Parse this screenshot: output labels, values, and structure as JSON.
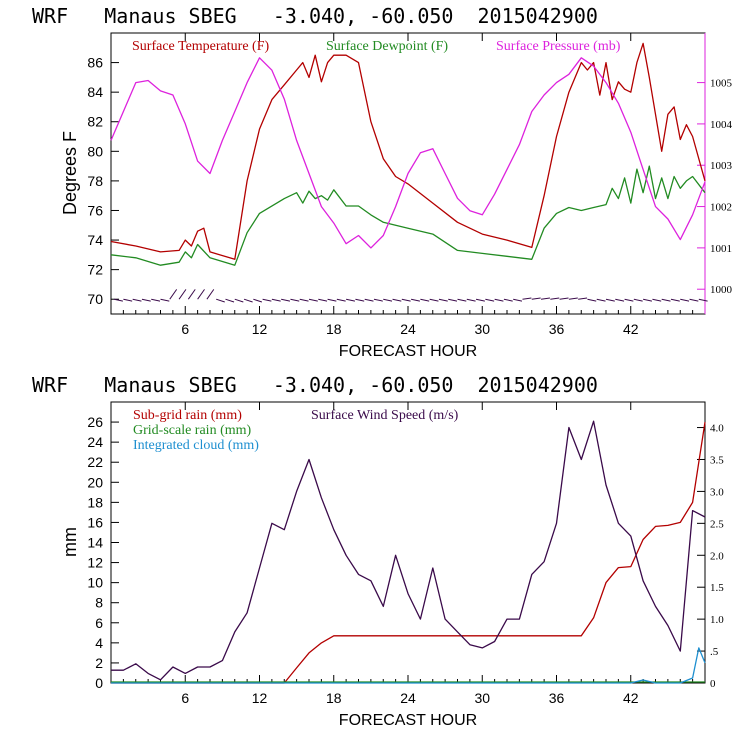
{
  "colors": {
    "temperature": "#b30000",
    "dewpoint": "#228b22",
    "pressure": "#dd22dd",
    "subgrid_rain": "#b30000",
    "gridscale_rain": "#228b22",
    "cloud": "#1e8fd0",
    "wind": "#3a0a4a",
    "axis": "#000000"
  },
  "chart_data": [
    {
      "type": "line",
      "title": "WRF   Manaus SBEG   -3.040, -60.050  2015042900",
      "xlabel": "FORECAST HOUR",
      "ylabel": "Degrees F",
      "xlim": [
        0,
        48
      ],
      "ylim": [
        69,
        88
      ],
      "y2lim": [
        999.4,
        1006.2
      ],
      "x_ticks": [
        6,
        12,
        18,
        24,
        30,
        36,
        42
      ],
      "y_ticks": [
        70,
        72,
        74,
        76,
        78,
        80,
        82,
        84,
        86
      ],
      "y2_ticks": [
        1000,
        1001,
        1002,
        1003,
        1004,
        1005
      ],
      "series": [
        {
          "name": "Surface Temperature (F)",
          "axis": "left",
          "x": [
            0,
            2,
            4,
            5.5,
            6,
            6.5,
            7,
            7.5,
            8,
            10,
            11,
            12,
            13,
            14,
            15,
            15.5,
            16,
            16.5,
            17,
            17.5,
            18,
            19,
            20,
            21,
            22,
            23,
            24,
            26,
            28,
            30,
            32,
            34,
            35,
            36,
            37,
            38,
            38.5,
            39,
            39.5,
            40,
            40.5,
            41,
            41.5,
            42,
            42.5,
            43,
            43.5,
            44,
            44.5,
            45,
            45.5,
            46,
            46.5,
            47,
            48
          ],
          "y": [
            73.9,
            73.6,
            73.2,
            73.3,
            74,
            73.6,
            74.6,
            74.8,
            73.2,
            72.7,
            78,
            81.5,
            83.5,
            84.5,
            85.5,
            86,
            85,
            86.5,
            84.7,
            86,
            86.5,
            86.5,
            86,
            82,
            79.5,
            78.3,
            77.8,
            76.5,
            75.2,
            74.4,
            74,
            73.5,
            77,
            81,
            84,
            86,
            85.5,
            86,
            83.8,
            86,
            83.5,
            84.7,
            84.2,
            84,
            86,
            87.3,
            85,
            82.5,
            80,
            82.5,
            83,
            80.8,
            81.8,
            81,
            78
          ]
        },
        {
          "name": "Surface Dewpoint (F)",
          "axis": "left",
          "x": [
            0,
            2,
            4,
            5.5,
            6,
            6.5,
            7,
            8,
            10,
            11,
            12,
            14,
            15,
            15.5,
            16,
            16.5,
            17,
            17.5,
            18,
            19,
            20,
            21,
            22,
            23,
            24,
            26,
            28,
            30,
            32,
            34,
            35,
            36,
            37,
            38,
            39,
            40,
            40.5,
            41,
            41.5,
            42,
            42.5,
            43,
            43.5,
            44,
            44.5,
            45,
            45.5,
            46,
            46.5,
            47,
            48
          ],
          "y": [
            73,
            72.8,
            72.3,
            72.5,
            73.2,
            72.8,
            73.7,
            72.8,
            72.3,
            74.5,
            75.8,
            76.8,
            77.2,
            76.5,
            77.3,
            76.8,
            77,
            76.7,
            77.4,
            76.3,
            76.3,
            75.7,
            75.2,
            75,
            74.8,
            74.4,
            73.3,
            73.1,
            72.9,
            72.7,
            74.8,
            75.8,
            76.2,
            76,
            76.2,
            76.4,
            77.5,
            76.8,
            78.2,
            76.5,
            78.8,
            77.2,
            79,
            76.8,
            78.2,
            76.8,
            78.3,
            77.5,
            78,
            78.3,
            77.2
          ]
        },
        {
          "name": "Surface Pressure (mb)",
          "axis": "right",
          "x": [
            0,
            1,
            2,
            3,
            4,
            5,
            6,
            7,
            8,
            9,
            10,
            11,
            12,
            13,
            14,
            15,
            16,
            17,
            18,
            19,
            20,
            21,
            22,
            23,
            24,
            25,
            26,
            27,
            28,
            29,
            30,
            31,
            32,
            33,
            34,
            35,
            36,
            37,
            38,
            39,
            40,
            41,
            42,
            43,
            44,
            45,
            46,
            47,
            48
          ],
          "y": [
            1003.6,
            1004.3,
            1005,
            1005.05,
            1004.8,
            1004.7,
            1004.0,
            1003.1,
            1002.8,
            1003.6,
            1004.3,
            1005,
            1005.6,
            1005.3,
            1004.6,
            1003.6,
            1002.8,
            1002,
            1001.6,
            1001.1,
            1001.3,
            1001,
            1001.3,
            1002,
            1002.8,
            1003.3,
            1003.4,
            1002.8,
            1002.2,
            1001.9,
            1001.8,
            1002.3,
            1002.9,
            1003.5,
            1004.3,
            1004.7,
            1005,
            1005.2,
            1005.6,
            1005.4,
            1005,
            1004.5,
            1003.8,
            1002.9,
            1002,
            1001.7,
            1001.2,
            1001.8,
            1002.6
          ]
        }
      ],
      "wind_barbs_row": "70"
    },
    {
      "type": "line",
      "title": "WRF   Manaus SBEG   -3.040, -60.050  2015042900",
      "xlabel": "FORECAST HOUR",
      "ylabel": "mm",
      "xlim": [
        0,
        48
      ],
      "ylim": [
        0,
        28
      ],
      "y2lim": [
        0,
        4.4
      ],
      "x_ticks": [
        6,
        12,
        18,
        24,
        30,
        36,
        42
      ],
      "y_ticks": [
        0,
        2,
        4,
        6,
        8,
        10,
        12,
        14,
        16,
        18,
        20,
        22,
        24,
        26
      ],
      "y2_ticks": [
        "0",
        ".5",
        "1.0",
        "1.5",
        "2.0",
        "2.5",
        "3.0",
        "3.5",
        "4.0"
      ],
      "series": [
        {
          "name": "Sub-grid rain (mm)",
          "axis": "left",
          "x": [
            0,
            14,
            15,
            16,
            17,
            18,
            38,
            39,
            40,
            41,
            42,
            43,
            44,
            45,
            46,
            47,
            47.5,
            48
          ],
          "y": [
            0,
            0,
            1.5,
            3,
            4,
            4.7,
            4.7,
            6.5,
            10,
            11.5,
            11.6,
            14.3,
            15.6,
            15.7,
            16,
            18,
            22,
            26
          ]
        },
        {
          "name": "Grid-scale rain (mm)",
          "axis": "left",
          "x": [
            0,
            48
          ],
          "y": [
            0.1,
            0.1
          ]
        },
        {
          "name": "Integrated cloud (mm)",
          "axis": "left",
          "x": [
            0,
            42,
            43,
            44,
            46,
            47,
            47.5,
            48
          ],
          "y": [
            0,
            0,
            0.3,
            0,
            0,
            0.5,
            3.5,
            2
          ]
        },
        {
          "name": "Surface Wind Speed (m/s)",
          "axis": "right",
          "x": [
            0,
            1,
            2,
            3,
            4,
            5,
            6,
            7,
            8,
            9,
            10,
            11,
            12,
            13,
            14,
            15,
            16,
            17,
            18,
            19,
            20,
            21,
            22,
            23,
            24,
            25,
            26,
            27,
            28,
            29,
            30,
            31,
            32,
            33,
            34,
            35,
            36,
            37,
            38,
            39,
            40,
            41,
            42,
            43,
            44,
            45,
            46,
            47,
            48
          ],
          "y": [
            0.2,
            0.2,
            0.3,
            0.15,
            0.05,
            0.25,
            0.15,
            0.25,
            0.25,
            0.35,
            0.8,
            1.1,
            1.8,
            2.5,
            2.4,
            3.0,
            3.5,
            2.9,
            2.4,
            2.0,
            1.7,
            1.6,
            1.2,
            2.0,
            1.4,
            1.0,
            1.8,
            1.0,
            0.8,
            0.6,
            0.55,
            0.65,
            1.0,
            1.0,
            1.7,
            1.9,
            2.5,
            4.0,
            3.5,
            4.1,
            3.1,
            2.5,
            2.3,
            1.6,
            1.2,
            0.9,
            0.5,
            2.7,
            2.6
          ]
        }
      ]
    }
  ]
}
